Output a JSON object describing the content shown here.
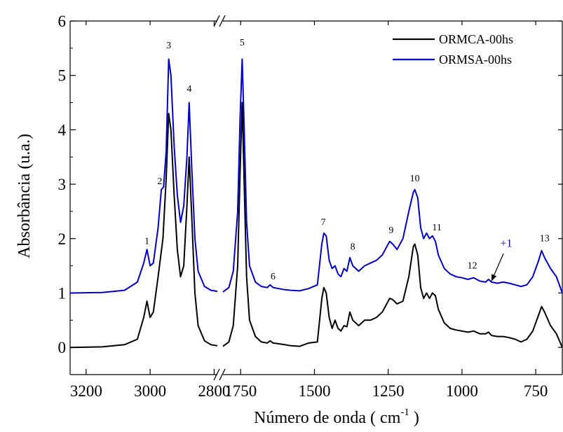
{
  "chart_data": {
    "type": "line",
    "title": "",
    "xlabel": "Número de onda ( cm",
    "xlabel_sup": "-1",
    "xlabel_tail": " )",
    "ylabel": "Absorbância (u.a.)",
    "ylim": [
      -0.5,
      6
    ],
    "yticks": [
      "0",
      "1",
      "2",
      "3",
      "4",
      "5",
      "6"
    ],
    "x_segments": [
      {
        "range": [
          3250,
          2790
        ],
        "ticks": [
          "3200",
          "3000",
          "2800"
        ]
      },
      {
        "range": [
          1810,
          660
        ],
        "ticks": [
          "1750",
          "1500",
          "1250",
          "1000",
          "750"
        ]
      }
    ],
    "axis_break": "//",
    "legend": {
      "placement": "top-right"
    },
    "series": [
      {
        "name": "ORMCA-00hs",
        "color": "#000000",
        "segments": [
          [
            [
              3250,
              0
            ],
            [
              3150,
              0.01
            ],
            [
              3080,
              0.05
            ],
            [
              3040,
              0.15
            ],
            [
              3020,
              0.55
            ],
            [
              3010,
              0.85
            ],
            [
              3000,
              0.55
            ],
            [
              2990,
              0.65
            ],
            [
              2975,
              1.3
            ],
            [
              2960,
              2.0
            ],
            [
              2950,
              3.1
            ],
            [
              2942,
              4.3
            ],
            [
              2935,
              4.0
            ],
            [
              2925,
              2.8
            ],
            [
              2915,
              1.8
            ],
            [
              2905,
              1.3
            ],
            [
              2895,
              1.5
            ],
            [
              2885,
              2.6
            ],
            [
              2878,
              3.5
            ],
            [
              2870,
              2.4
            ],
            [
              2860,
              1.0
            ],
            [
              2850,
              0.4
            ],
            [
              2830,
              0.12
            ],
            [
              2810,
              0.05
            ],
            [
              2790,
              0.03
            ]
          ],
          [
            [
              1810,
              0.02
            ],
            [
              1790,
              0.1
            ],
            [
              1775,
              0.4
            ],
            [
              1760,
              1.5
            ],
            [
              1752,
              3.2
            ],
            [
              1745,
              4.5
            ],
            [
              1738,
              3.0
            ],
            [
              1730,
              1.3
            ],
            [
              1720,
              0.5
            ],
            [
              1700,
              0.2
            ],
            [
              1680,
              0.1
            ],
            [
              1660,
              0.08
            ],
            [
              1650,
              0.12
            ],
            [
              1640,
              0.08
            ],
            [
              1600,
              0.05
            ],
            [
              1580,
              0.03
            ],
            [
              1550,
              0.02
            ],
            [
              1520,
              0.08
            ],
            [
              1490,
              0.1
            ],
            [
              1475,
              0.9
            ],
            [
              1468,
              1.1
            ],
            [
              1460,
              1.0
            ],
            [
              1450,
              0.55
            ],
            [
              1440,
              0.35
            ],
            [
              1430,
              0.5
            ],
            [
              1420,
              0.35
            ],
            [
              1410,
              0.3
            ],
            [
              1400,
              0.4
            ],
            [
              1390,
              0.38
            ],
            [
              1380,
              0.65
            ],
            [
              1370,
              0.5
            ],
            [
              1360,
              0.45
            ],
            [
              1350,
              0.4
            ],
            [
              1330,
              0.5
            ],
            [
              1310,
              0.5
            ],
            [
              1290,
              0.55
            ],
            [
              1270,
              0.65
            ],
            [
              1260,
              0.75
            ],
            [
              1245,
              0.9
            ],
            [
              1235,
              0.88
            ],
            [
              1220,
              0.8
            ],
            [
              1200,
              0.85
            ],
            [
              1180,
              1.3
            ],
            [
              1165,
              1.85
            ],
            [
              1160,
              1.9
            ],
            [
              1150,
              1.7
            ],
            [
              1140,
              1.1
            ],
            [
              1130,
              0.9
            ],
            [
              1120,
              1.0
            ],
            [
              1110,
              0.9
            ],
            [
              1100,
              1.0
            ],
            [
              1090,
              0.95
            ],
            [
              1080,
              0.7
            ],
            [
              1060,
              0.45
            ],
            [
              1040,
              0.35
            ],
            [
              1020,
              0.32
            ],
            [
              1000,
              0.3
            ],
            [
              980,
              0.28
            ],
            [
              960,
              0.3
            ],
            [
              940,
              0.25
            ],
            [
              920,
              0.25
            ],
            [
              910,
              0.28
            ],
            [
              900,
              0.22
            ],
            [
              880,
              0.2
            ],
            [
              860,
              0.2
            ],
            [
              840,
              0.18
            ],
            [
              820,
              0.15
            ],
            [
              800,
              0.1
            ],
            [
              780,
              0.15
            ],
            [
              760,
              0.3
            ],
            [
              740,
              0.6
            ],
            [
              730,
              0.75
            ],
            [
              720,
              0.65
            ],
            [
              700,
              0.4
            ],
            [
              680,
              0.25
            ],
            [
              660,
              0.0
            ]
          ]
        ]
      },
      {
        "name": "ORMSA-00hs",
        "color": "#0000cc",
        "segments": [
          [
            [
              3250,
              1.0
            ],
            [
              3150,
              1.01
            ],
            [
              3080,
              1.05
            ],
            [
              3040,
              1.2
            ],
            [
              3020,
              1.55
            ],
            [
              3010,
              1.8
            ],
            [
              3000,
              1.5
            ],
            [
              2990,
              1.55
            ],
            [
              2975,
              2.2
            ],
            [
              2965,
              2.9
            ],
            [
              2958,
              2.95
            ],
            [
              2950,
              3.6
            ],
            [
              2942,
              5.3
            ],
            [
              2935,
              5.0
            ],
            [
              2925,
              3.7
            ],
            [
              2915,
              2.8
            ],
            [
              2905,
              2.3
            ],
            [
              2895,
              2.6
            ],
            [
              2885,
              3.5
            ],
            [
              2878,
              4.5
            ],
            [
              2870,
              3.3
            ],
            [
              2860,
              2.0
            ],
            [
              2850,
              1.4
            ],
            [
              2830,
              1.12
            ],
            [
              2810,
              1.05
            ],
            [
              2790,
              1.03
            ]
          ],
          [
            [
              1810,
              1.02
            ],
            [
              1790,
              1.1
            ],
            [
              1775,
              1.4
            ],
            [
              1760,
              2.5
            ],
            [
              1752,
              4.2
            ],
            [
              1745,
              5.3
            ],
            [
              1738,
              4.0
            ],
            [
              1730,
              2.3
            ],
            [
              1720,
              1.5
            ],
            [
              1700,
              1.2
            ],
            [
              1680,
              1.12
            ],
            [
              1660,
              1.1
            ],
            [
              1650,
              1.15
            ],
            [
              1640,
              1.1
            ],
            [
              1600,
              1.06
            ],
            [
              1580,
              1.05
            ],
            [
              1550,
              1.04
            ],
            [
              1520,
              1.08
            ],
            [
              1490,
              1.15
            ],
            [
              1475,
              1.9
            ],
            [
              1468,
              2.1
            ],
            [
              1460,
              2.05
            ],
            [
              1450,
              1.6
            ],
            [
              1440,
              1.45
            ],
            [
              1430,
              1.5
            ],
            [
              1420,
              1.35
            ],
            [
              1410,
              1.3
            ],
            [
              1400,
              1.45
            ],
            [
              1390,
              1.4
            ],
            [
              1380,
              1.65
            ],
            [
              1370,
              1.5
            ],
            [
              1360,
              1.45
            ],
            [
              1350,
              1.4
            ],
            [
              1330,
              1.5
            ],
            [
              1310,
              1.55
            ],
            [
              1290,
              1.6
            ],
            [
              1270,
              1.7
            ],
            [
              1260,
              1.8
            ],
            [
              1245,
              1.95
            ],
            [
              1235,
              1.9
            ],
            [
              1220,
              1.8
            ],
            [
              1200,
              2.0
            ],
            [
              1180,
              2.5
            ],
            [
              1165,
              2.85
            ],
            [
              1160,
              2.9
            ],
            [
              1150,
              2.75
            ],
            [
              1140,
              2.2
            ],
            [
              1130,
              2.0
            ],
            [
              1120,
              2.1
            ],
            [
              1110,
              2.0
            ],
            [
              1100,
              2.05
            ],
            [
              1090,
              1.95
            ],
            [
              1080,
              1.7
            ],
            [
              1060,
              1.45
            ],
            [
              1040,
              1.35
            ],
            [
              1020,
              1.3
            ],
            [
              1000,
              1.28
            ],
            [
              980,
              1.25
            ],
            [
              960,
              1.28
            ],
            [
              940,
              1.22
            ],
            [
              920,
              1.2
            ],
            [
              910,
              1.25
            ],
            [
              900,
              1.2
            ],
            [
              880,
              1.18
            ],
            [
              860,
              1.2
            ],
            [
              840,
              1.18
            ],
            [
              820,
              1.15
            ],
            [
              800,
              1.12
            ],
            [
              780,
              1.15
            ],
            [
              760,
              1.3
            ],
            [
              740,
              1.6
            ],
            [
              730,
              1.78
            ],
            [
              720,
              1.65
            ],
            [
              700,
              1.45
            ],
            [
              680,
              1.3
            ],
            [
              660,
              1.0
            ]
          ]
        ]
      }
    ],
    "peak_labels": [
      {
        "text": "1",
        "x": 3010,
        "y": 1.9
      },
      {
        "text": "2",
        "x": 2970,
        "y": 3.0
      },
      {
        "text": "3",
        "x": 2942,
        "y": 5.5
      },
      {
        "text": "4",
        "x": 2878,
        "y": 4.7
      },
      {
        "text": "5",
        "x": 1745,
        "y": 5.55
      },
      {
        "text": "6",
        "x": 1640,
        "y": 1.25
      },
      {
        "text": "7",
        "x": 1470,
        "y": 2.25
      },
      {
        "text": "8",
        "x": 1370,
        "y": 1.8
      },
      {
        "text": "9",
        "x": 1240,
        "y": 2.1
      },
      {
        "text": "10",
        "x": 1160,
        "y": 3.05
      },
      {
        "text": "11",
        "x": 1085,
        "y": 2.15
      },
      {
        "text": "12",
        "x": 965,
        "y": 1.45
      },
      {
        "text": "13",
        "x": 720,
        "y": 1.95
      }
    ],
    "annotation": {
      "text": "+1",
      "color": "#0000cc",
      "x": 850,
      "y": 1.85,
      "arrow_to": [
        900,
        1.22
      ]
    }
  }
}
